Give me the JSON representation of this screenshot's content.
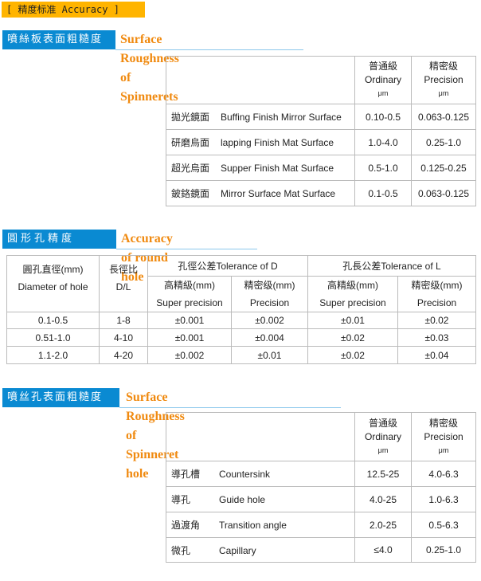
{
  "header": {
    "label": "[ 精度标准 Accuracy ]"
  },
  "section1": {
    "title_cn": "噴絲板表面粗糙度",
    "title_en": "Surface Roughness of Spinnerets",
    "columns": [
      {
        "cn": "普通級",
        "en": "Ordinary",
        "unit": "μm"
      },
      {
        "cn": "精密级",
        "en": "Precision",
        "unit": "μm"
      }
    ],
    "rows": [
      {
        "cn": "拋光鏡面",
        "en": "Buffing Finish Mirror Surface",
        "ordinary": "0.10-0.5",
        "precision": "0.063-0.125"
      },
      {
        "cn": "研磨烏面",
        "en": "lapping Finish Mat Surface",
        "ordinary": "1.0-4.0",
        "precision": "0.25-1.0"
      },
      {
        "cn": "超光烏面",
        "en": "Supper Finish Mat Surface",
        "ordinary": "0.5-1.0",
        "precision": "0.125-0.25"
      },
      {
        "cn": "鈹鉻鏡面",
        "en": "Mirror Surface Mat Surface",
        "ordinary": "0.1-0.5",
        "precision": "0.063-0.125"
      }
    ]
  },
  "section2": {
    "title_cn": "圓形孔精度",
    "title_en": "Accuracy of round hole",
    "h_diam_cn": "圓孔直徑(mm)",
    "h_diam_en": "Diameter of hole",
    "h_dl_cn": "長徑比",
    "h_dl_en": "D/L",
    "h_tolD": "孔徑公差Tolerance  of D",
    "h_tolL": "孔長公差Tolerance of L",
    "h_sp_cn": "高精級(mm)",
    "h_sp_en": "Super precision",
    "h_p_cn": "精密级(mm)",
    "h_p_en": "Precision",
    "rows": [
      [
        "0.1-0.5",
        "1-8",
        "±0.001",
        "±0.002",
        "±0.01",
        "±0.02"
      ],
      [
        "0.51-1.0",
        "4-10",
        "±0.001",
        "±0.004",
        "±0.02",
        "±0.03"
      ],
      [
        "1.1-2.0",
        "4-20",
        "±0.002",
        "±0.01",
        "±0.02",
        "±0.04"
      ]
    ]
  },
  "section3": {
    "title_cn": "噴丝孔表面粗糙度",
    "title_en": "Surface Roughness of Spinneret hole",
    "columns": [
      {
        "cn": "普通级",
        "en": "Ordinary",
        "unit": "μm"
      },
      {
        "cn": "精密级",
        "en": "Precision",
        "unit": "μm"
      }
    ],
    "rows": [
      {
        "cn": "導孔槽",
        "en": "Countersink",
        "ordinary": "12.5-25",
        "precision": "4.0-6.3"
      },
      {
        "cn": "導孔",
        "en": "Guide hole",
        "ordinary": "4.0-25",
        "precision": "1.0-6.3"
      },
      {
        "cn": "過渡角",
        "en": "Transition angle",
        "ordinary": "2.0-25",
        "precision": "0.5-6.3"
      },
      {
        "cn": "微孔",
        "en": "Capillary",
        "ordinary": "≤4.0",
        "precision": "0.25-1.0"
      }
    ]
  }
}
